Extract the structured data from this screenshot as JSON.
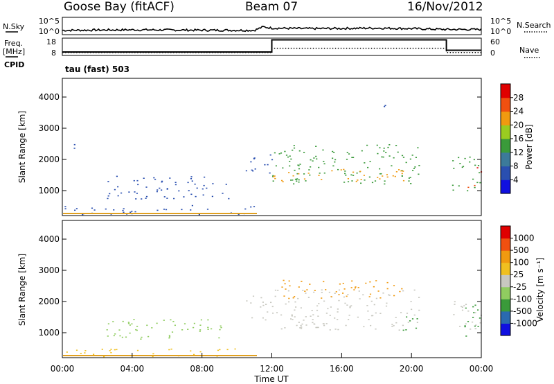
{
  "header": {
    "station": "Goose Bay (fitACF)",
    "beam": "Beam 07",
    "date": "16/Nov/2012"
  },
  "left_labels": {
    "nsky": "N.Sky",
    "freq_line1": "Freq.",
    "freq_line2": "[MHz]",
    "cpid": "CPID"
  },
  "right_labels": {
    "nsearch": "N.Search",
    "nave": "Nave"
  },
  "cpid_text": "tau (fast) 503",
  "colors": {
    "scatter_blue": "#2a4fb0",
    "scatter_green": "#3a9a3a",
    "scatter_orange": "#f09a10",
    "scatter_grey": "#c8c8c0",
    "ground_orange": "#e0a020"
  },
  "chart_data": [
    {
      "type": "line",
      "name": "noise",
      "left_axis": {
        "label": "N.Sky",
        "ticks": [
          "10^5",
          "10^0"
        ]
      },
      "right_axis": {
        "label": "N.Search",
        "ticks": [
          "10^5",
          "10^0"
        ]
      },
      "x": [
        0,
        4,
        8,
        11,
        11.5,
        12,
        14,
        16,
        18,
        20,
        22,
        24
      ],
      "y_fraction": [
        0.25,
        0.28,
        0.26,
        0.25,
        0.45,
        0.38,
        0.35,
        0.36,
        0.38,
        0.35,
        0.3,
        0.3
      ]
    },
    {
      "type": "line",
      "name": "freq-nave",
      "left_axis": {
        "label": "Freq. [MHz]",
        "ticks": [
          "18",
          "8"
        ]
      },
      "right_axis": {
        "label": "Nave",
        "ticks": [
          "60",
          "0"
        ]
      },
      "freq": {
        "x": [
          0,
          12,
          12,
          22,
          22,
          24
        ],
        "y": [
          10,
          10,
          17,
          17,
          11,
          11
        ]
      },
      "nave": {
        "x": [
          0,
          12,
          12,
          22,
          22,
          24
        ],
        "y": [
          10,
          10,
          25,
          25,
          10,
          10
        ]
      },
      "freq_ylim": [
        8,
        18
      ]
    },
    {
      "type": "heatmap",
      "name": "power",
      "ylabel": "Slant Range [km]",
      "yticks": [
        "1000",
        "2000",
        "3000",
        "4000"
      ],
      "ylim": [
        200,
        4600
      ],
      "xlim": [
        0,
        24
      ],
      "colorbar": {
        "label": "Power [dB]",
        "ticks": [
          "4",
          "8",
          "12",
          "16",
          "20",
          "24",
          "28"
        ],
        "colors": [
          "#1010e0",
          "#2a4fb0",
          "#3c7a9a",
          "#3a9a3a",
          "#9acc20",
          "#f09a10",
          "#f05010",
          "#e00000"
        ]
      },
      "regions": [
        {
          "x0": 0.1,
          "x1": 11.0,
          "r0": 250,
          "r1": 550,
          "color": "#2a4fb0"
        },
        {
          "x0": 2.5,
          "x1": 9.5,
          "r0": 750,
          "r1": 1500,
          "color": "#2a4fb0"
        },
        {
          "x0": 0.2,
          "x1": 0.8,
          "r0": 2200,
          "r1": 2500,
          "color": "#2a4fb0"
        },
        {
          "x0": 10.5,
          "x1": 12.0,
          "r0": 1400,
          "r1": 2200,
          "color": "#2a4fb0"
        },
        {
          "x0": 12.0,
          "x1": 20.5,
          "r0": 1200,
          "r1": 2500,
          "color": "#3a9a3a"
        },
        {
          "x0": 12.0,
          "x1": 20.0,
          "r0": 1300,
          "r1": 1700,
          "color": "#f09a10"
        },
        {
          "x0": 17.5,
          "x1": 18.5,
          "r0": 3700,
          "r1": 3900,
          "color": "#2a4fb0"
        },
        {
          "x0": 22.3,
          "x1": 24.0,
          "r0": 1000,
          "r1": 2100,
          "color": "#3a9a3a"
        },
        {
          "x0": 23.0,
          "x1": 24.0,
          "r0": 1600,
          "r1": 1800,
          "color": "#e00000"
        },
        {
          "x0": 23.0,
          "x1": 24.0,
          "r0": 1100,
          "r1": 1250,
          "color": "#f05010"
        }
      ]
    },
    {
      "type": "heatmap",
      "name": "velocity",
      "ylabel": "Slant Range [km]",
      "yticks": [
        "1000",
        "2000",
        "3000",
        "4000"
      ],
      "ylim": [
        200,
        4600
      ],
      "xlim": [
        0,
        24
      ],
      "xticks": [
        "00:00",
        "04:00",
        "08:00",
        "12:00",
        "16:00",
        "20:00",
        "00:00"
      ],
      "xlabel": "Time UT",
      "colorbar": {
        "label": "Velocity [m s⁻¹]",
        "ticks": [
          "1000",
          "500",
          "100",
          "25",
          "-25",
          "-100",
          "-500",
          "-1000"
        ],
        "colors": [
          "#1010e0",
          "#2a6ab0",
          "#3a9a3a",
          "#90cc60",
          "#c8c8c0",
          "#f0c020",
          "#f09a10",
          "#f05010",
          "#e00000"
        ]
      },
      "regions": [
        {
          "x0": 0.1,
          "x1": 11.0,
          "r0": 250,
          "r1": 500,
          "color": "#f0c020"
        },
        {
          "x0": 2.5,
          "x1": 9.5,
          "r0": 800,
          "r1": 1450,
          "color": "#90cc60"
        },
        {
          "x0": 10.5,
          "x1": 12.0,
          "r0": 1400,
          "r1": 2200,
          "color": "#c8c8c0"
        },
        {
          "x0": 12.0,
          "x1": 20.5,
          "r0": 1100,
          "r1": 2400,
          "color": "#c8c8c0"
        },
        {
          "x0": 12.5,
          "x1": 19.5,
          "r0": 2100,
          "r1": 2700,
          "color": "#f09a10"
        },
        {
          "x0": 19.5,
          "x1": 20.5,
          "r0": 1000,
          "r1": 1600,
          "color": "#3a9a3a"
        },
        {
          "x0": 22.3,
          "x1": 24.0,
          "r0": 1100,
          "r1": 2100,
          "color": "#c8c8c0"
        },
        {
          "x0": 23.0,
          "x1": 24.0,
          "r0": 800,
          "r1": 2000,
          "color": "#3a9a3a"
        }
      ]
    }
  ]
}
